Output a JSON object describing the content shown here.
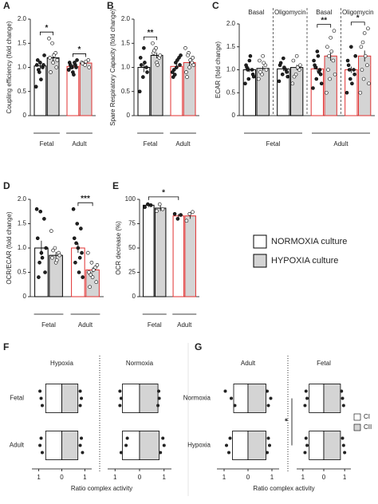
{
  "chart_data": [
    {
      "type": "bar",
      "title": "A",
      "y_label": "Coupling efficiency (fold change)",
      "categories": [
        "Fetal",
        "Adult"
      ],
      "edge_colors": [
        "#000000",
        "#e03030"
      ],
      "ylim": [
        0,
        2
      ],
      "yticks": [
        0,
        0.5,
        {
          "value": 1,
          "label": "1.0"
        },
        1.5,
        {
          "value": 2,
          "label": "2.0"
        }
      ],
      "annotations": [
        "*",
        "*"
      ],
      "series": [
        {
          "name": "NORMOXIA culture",
          "color": "#ffffff",
          "values": [
            1.03,
            1.02
          ],
          "errors": [
            0.07,
            0.04
          ],
          "points": [
            [
              0.6,
              0.9,
              1.0,
              1.05,
              1.1,
              1.05,
              1.15,
              0.75,
              1.25,
              0.95
            ],
            [
              0.95,
              1.0,
              1.05,
              1.1,
              0.9,
              1.0,
              1.05,
              0.85,
              1.15,
              1.0,
              1.1,
              0.95
            ]
          ]
        },
        {
          "name": "HYPOXIA culture",
          "color": "#d4d4d4",
          "values": [
            1.2,
            1.09
          ],
          "errors": [
            0.09,
            0.03
          ],
          "points": [
            [
              1.6,
              1.5,
              1.3,
              1.2,
              1.1,
              1.0,
              0.9,
              1.25,
              1.15
            ],
            [
              1.1,
              1.05,
              1.15,
              1.08,
              1.12,
              1.0
            ]
          ]
        }
      ]
    },
    {
      "type": "bar",
      "title": "B",
      "y_label": "Spare Respiratory Capacity (fold change)",
      "categories": [
        "Fetal",
        "Adult"
      ],
      "edge_colors": [
        "#000000",
        "#e03030"
      ],
      "ylim": [
        0,
        2
      ],
      "yticks": [
        0,
        0.5,
        {
          "value": 1,
          "label": "1.0"
        },
        1.5,
        {
          "value": 2,
          "label": "2.0"
        }
      ],
      "annotations": [
        "**"
      ],
      "series": [
        {
          "name": "NORMOXIA culture",
          "color": "#ffffff",
          "values": [
            1.0,
            1.02
          ],
          "errors": [
            0.1,
            0.06
          ],
          "points": [
            [
              0.5,
              0.8,
              1.0,
              1.2,
              1.4,
              0.9,
              1.05,
              1.1
            ],
            [
              0.9,
              1.1,
              1.2,
              0.8,
              1.0,
              1.05,
              0.95,
              1.15,
              1.25,
              0.85
            ]
          ]
        },
        {
          "name": "HYPOXIA culture",
          "color": "#d4d4d4",
          "values": [
            1.25,
            1.1
          ],
          "errors": [
            0.06,
            0.06
          ],
          "points": [
            [
              1.5,
              1.4,
              1.2,
              1.3,
              1.1,
              1.25,
              1.35,
              1.05
            ],
            [
              1.4,
              1.3,
              1.1,
              0.9,
              1.0,
              1.2,
              0.8,
              1.15,
              1.05,
              1.25
            ]
          ]
        }
      ]
    },
    {
      "type": "bar",
      "title": "C",
      "y_label": "ECAR (fold change)",
      "categories": [
        "Basal",
        "Oligomycin",
        "Basal",
        "Oligomycin"
      ],
      "groups": [
        "Fetal",
        "Adult"
      ],
      "edge_colors": [
        "#000000",
        "#000000",
        "#e03030",
        "#e03030"
      ],
      "ylim": [
        0,
        2
      ],
      "yticks": [
        0,
        0.5,
        {
          "value": 1,
          "label": "1.0"
        },
        1.5,
        {
          "value": 2,
          "label": "2.0"
        }
      ],
      "annotations": [
        "**",
        "*"
      ],
      "series": [
        {
          "name": "NORMOXIA culture",
          "color": "#ffffff",
          "values": [
            1.0,
            1.02,
            1.02,
            1.0
          ],
          "errors": [
            0.05,
            0.05,
            0.06,
            0.07
          ],
          "points": [
            [
              0.7,
              0.8,
              1.0,
              1.1,
              1.2,
              0.9,
              1.05,
              1.3,
              0.85,
              1.0
            ],
            [
              0.75,
              0.9,
              1.0,
              1.1,
              1.25,
              0.95,
              1.15,
              1.05,
              0.85
            ],
            [
              0.6,
              0.8,
              1.0,
              1.2,
              1.4,
              0.9,
              1.1,
              1.3,
              0.7,
              1.05,
              0.95
            ],
            [
              0.5,
              0.8,
              1.0,
              1.2,
              1.5,
              0.9,
              1.1,
              0.7,
              1.3,
              1.0
            ]
          ]
        },
        {
          "name": "HYPOXIA culture",
          "color": "#d4d4d4",
          "values": [
            1.03,
            1.05,
            1.3,
            1.3
          ],
          "errors": [
            0.05,
            0.06,
            0.1,
            0.12
          ],
          "points": [
            [
              0.8,
              0.9,
              1.1,
              1.2,
              1.3,
              1.0,
              0.95,
              1.15
            ],
            [
              0.7,
              0.9,
              1.0,
              1.2,
              1.3,
              1.1,
              0.85,
              1.05
            ],
            [
              0.5,
              0.8,
              1.2,
              1.5,
              1.7,
              1.85,
              1.0,
              1.4,
              0.9,
              1.3
            ],
            [
              0.5,
              0.8,
              1.1,
              1.5,
              1.8,
              1.9,
              1.0,
              1.3,
              0.7,
              1.6
            ]
          ]
        }
      ]
    },
    {
      "type": "bar",
      "title": "D",
      "y_label": "OCR/ECAR (fold change)",
      "categories": [
        "Fetal",
        "Adult"
      ],
      "edge_colors": [
        "#000000",
        "#e03030"
      ],
      "ylim": [
        0,
        2
      ],
      "yticks": [
        0,
        0.5,
        {
          "value": 1,
          "label": "1.0"
        },
        1.5,
        {
          "value": 2,
          "label": "2.0"
        }
      ],
      "annotations": [
        "***"
      ],
      "series": [
        {
          "name": "NORMOXIA culture",
          "color": "#ffffff",
          "values": [
            1.0,
            1.0
          ],
          "errors": [
            0.15,
            0.1
          ],
          "points": [
            [
              1.8,
              1.75,
              1.6,
              1.2,
              0.9,
              0.5,
              0.4,
              0.8,
              1.0,
              0.7
            ],
            [
              1.8,
              1.5,
              1.4,
              1.2,
              1.0,
              0.9,
              0.7,
              0.5,
              0.4,
              1.1,
              0.8
            ]
          ]
        },
        {
          "name": "HYPOXIA culture",
          "color": "#d4d4d4",
          "values": [
            0.85,
            0.55
          ],
          "errors": [
            0.07,
            0.05
          ],
          "points": [
            [
              1.35,
              1.0,
              0.9,
              0.8,
              0.7,
              0.85,
              0.95,
              0.75
            ],
            [
              0.9,
              0.7,
              0.6,
              0.5,
              0.4,
              0.3,
              0.2,
              0.55,
              0.65,
              0.45
            ]
          ]
        }
      ]
    },
    {
      "type": "bar",
      "title": "E",
      "y_label": "OCR decrease (%)",
      "categories": [
        "Fetal",
        "Adult"
      ],
      "edge_colors": [
        "#000000",
        "#e03030"
      ],
      "ylim": [
        0,
        100
      ],
      "yticks": [
        0,
        25,
        50,
        75,
        100
      ],
      "annotations": [
        "*"
      ],
      "series": [
        {
          "name": "NORMOXIA culture",
          "color": "#ffffff",
          "values": [
            94,
            83
          ],
          "errors": [
            2,
            2
          ],
          "points": [
            [
              92,
              95,
              94
            ],
            [
              85,
              80,
              84
            ]
          ]
        },
        {
          "name": "HYPOXIA culture",
          "color": "#d4d4d4",
          "values": [
            91,
            83
          ],
          "errors": [
            3,
            3
          ],
          "points": [
            [
              88,
              95,
              90
            ],
            [
              78,
              85,
              87
            ]
          ]
        }
      ]
    },
    {
      "type": "diverging_bar",
      "title": "F",
      "x_label": "Ratio complex activity",
      "categories": [
        "Fetal",
        "Adult"
      ],
      "xlim": [
        -1.3,
        1.3
      ],
      "xticks": [
        {
          "value": -1,
          "label": "1"
        },
        0,
        1
      ],
      "panels": [
        {
          "title": "Hypoxia",
          "series": [
            {
              "color": "#ffffff",
              "values": [
                -0.7,
                -0.7
              ],
              "points": [
                [
                  -0.95,
                  -0.9,
                  -0.85
                ],
                [
                  -0.9,
                  -0.95,
                  -0.85
                ]
              ]
            },
            {
              "color": "#d4d4d4",
              "values": [
                0.7,
                0.7
              ],
              "points": [
                [
                  0.8,
                  0.85,
                  0.8
                ],
                [
                  0.85,
                  0.8,
                  0.9
                ]
              ]
            }
          ]
        },
        {
          "title": "Normoxia",
          "series": [
            {
              "color": "#ffffff",
              "values": [
                -0.7,
                -0.7
              ],
              "points": [
                [
                  -0.8,
                  -0.75,
                  -0.8
                ],
                [
                  -0.5,
                  -0.55,
                  -0.75
                ]
              ]
            },
            {
              "color": "#d4d4d4",
              "values": [
                0.75,
                0.8
              ],
              "points": [
                [
                  0.78,
                  0.8,
                  0.75
                ],
                [
                  0.95,
                  1.0,
                  0.85
                ]
              ]
            }
          ]
        }
      ]
    },
    {
      "type": "diverging_bar",
      "title": "G",
      "x_label": "Ratio complex activity",
      "categories": [
        "Normoxia",
        "Hypoxia"
      ],
      "xlim": [
        -1.3,
        1.3
      ],
      "xticks": [
        {
          "value": -1,
          "label": "1"
        },
        0,
        1
      ],
      "legend": [
        {
          "name": "CI",
          "color": "#ffffff"
        },
        {
          "name": "CII",
          "color": "#d4d4d4"
        }
      ],
      "annotations": [
        "*"
      ],
      "panels": [
        {
          "title": "Adult",
          "series": [
            {
              "color": "#ffffff",
              "values": [
                -0.6,
                -0.65
              ],
              "points": [
                [
                  -0.95,
                  -0.7,
                  -0.55
                ],
                [
                  -0.75,
                  -0.9,
                  -0.8
                ]
              ]
            },
            {
              "color": "#d4d4d4",
              "values": [
                0.75,
                0.75
              ],
              "points": [
                [
                  0.8,
                  0.95,
                  0.85
                ],
                [
                  0.85,
                  0.9,
                  0.8
                ]
              ]
            }
          ]
        },
        {
          "title": "Fetal",
          "series": [
            {
              "color": "#ffffff",
              "values": [
                -0.7,
                -0.7
              ],
              "points": [
                [
                  -0.85,
                  -0.8,
                  -0.9
                ],
                [
                  -0.85,
                  -0.8,
                  -0.9
                ]
              ]
            },
            {
              "color": "#d4d4d4",
              "values": [
                0.8,
                0.8
              ],
              "points": [
                [
                  0.85,
                  0.9,
                  0.95
                ],
                [
                  0.9,
                  0.95,
                  1.0
                ]
              ]
            }
          ]
        }
      ]
    }
  ]
}
